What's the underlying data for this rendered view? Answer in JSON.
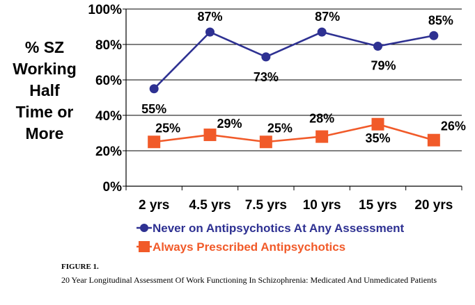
{
  "chart_data": {
    "type": "line",
    "ylabel_lines": [
      "% SZ",
      "Working",
      "Half",
      "Time or",
      "More"
    ],
    "categories": [
      "2 yrs",
      "4.5 yrs",
      "7.5 yrs",
      "10 yrs",
      "15 yrs",
      "20 yrs"
    ],
    "ylim": [
      0,
      100
    ],
    "yticks": [
      "0%",
      "20%",
      "40%",
      "60%",
      "80%",
      "100%"
    ],
    "grid": true,
    "legend_position": "bottom",
    "series": [
      {
        "name": "Never on Antipsychotics At Any Assessment",
        "values": [
          55,
          87,
          73,
          87,
          79,
          85
        ],
        "labels": [
          "55%",
          "87%",
          "73%",
          "87%",
          "79%",
          "85%"
        ],
        "color": "#2e3192",
        "marker": "circle"
      },
      {
        "name": "Always Prescribed Antipsychotics",
        "values": [
          25,
          29,
          25,
          28,
          35,
          26
        ],
        "labels": [
          "25%",
          "29%",
          "25%",
          "28%",
          "35%",
          "26%"
        ],
        "color": "#f15a29",
        "marker": "square"
      }
    ]
  },
  "caption": {
    "figure_label": "FIGURE 1.",
    "text": "20 Year Longitudinal Assessment Of Work Functioning In Schizophrenia: Medicated And Unmedicated Patients"
  }
}
